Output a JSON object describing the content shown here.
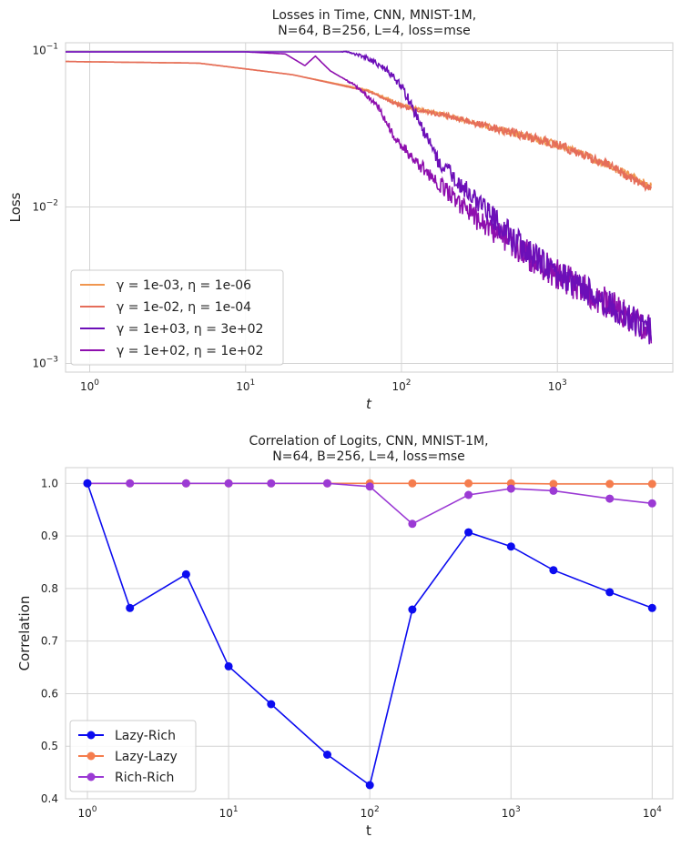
{
  "chart_data": [
    {
      "type": "line",
      "title_line1": "Losses in Time, CNN, MNIST-1M,",
      "title_line2": "N=64, B=256, L=4, loss=mse",
      "xlabel": "t",
      "ylabel": "Loss",
      "xscale": "log",
      "yscale": "log",
      "xlim": [
        0.7,
        5500
      ],
      "ylim": [
        0.00088,
        0.112
      ],
      "xticks": [
        {
          "value": 1,
          "base": "10",
          "exp": "0"
        },
        {
          "value": 10,
          "base": "10",
          "exp": "1"
        },
        {
          "value": 100,
          "base": "10",
          "exp": "2"
        },
        {
          "value": 1000,
          "base": "10",
          "exp": "3"
        }
      ],
      "yticks": [
        {
          "value": 0.001,
          "base": "10",
          "exp": "−3"
        },
        {
          "value": 0.01,
          "base": "10",
          "exp": "−2"
        },
        {
          "value": 0.1,
          "base": "10",
          "exp": "−1"
        }
      ],
      "legend_position": "lower-left",
      "series": [
        {
          "name": "γ = 1e-03, η = 1e-06",
          "color": "#f0964f",
          "points": [
            [
              0.7,
              0.085
            ],
            [
              5,
              0.083
            ],
            [
              20,
              0.07
            ],
            [
              60,
              0.056
            ],
            [
              100,
              0.045
            ],
            [
              200,
              0.038
            ],
            [
              500,
              0.03
            ],
            [
              1000,
              0.025
            ],
            [
              2000,
              0.019
            ],
            [
              4000,
              0.0135
            ]
          ],
          "noise": 0.025
        },
        {
          "name": "γ = 1e-02, η = 1e-04",
          "color": "#e56d5a",
          "points": [
            [
              0.7,
              0.085
            ],
            [
              5,
              0.083
            ],
            [
              20,
              0.07
            ],
            [
              60,
              0.055
            ],
            [
              100,
              0.044
            ],
            [
              200,
              0.038
            ],
            [
              500,
              0.03
            ],
            [
              1000,
              0.025
            ],
            [
              2000,
              0.019
            ],
            [
              4000,
              0.013
            ]
          ],
          "noise": 0.03
        },
        {
          "name": "γ = 1e+03, η = 3e+02",
          "color": "#6c0fb8",
          "points": [
            [
              0.7,
              0.098
            ],
            [
              20,
              0.098
            ],
            [
              45,
              0.098
            ],
            [
              60,
              0.09
            ],
            [
              80,
              0.075
            ],
            [
              100,
              0.06
            ],
            [
              130,
              0.035
            ],
            [
              170,
              0.02
            ],
            [
              300,
              0.011
            ],
            [
              600,
              0.0055
            ],
            [
              1000,
              0.0038
            ],
            [
              2000,
              0.0025
            ],
            [
              4000,
              0.0016
            ]
          ],
          "noise": 0.09
        },
        {
          "name": "γ = 1e+02, η = 1e+02",
          "color": "#8e0fae",
          "points": [
            [
              0.7,
              0.098
            ],
            [
              10,
              0.098
            ],
            [
              18,
              0.095
            ],
            [
              24,
              0.08
            ],
            [
              28,
              0.092
            ],
            [
              35,
              0.074
            ],
            [
              50,
              0.06
            ],
            [
              70,
              0.045
            ],
            [
              90,
              0.028
            ],
            [
              150,
              0.016
            ],
            [
              300,
              0.0085
            ],
            [
              600,
              0.0052
            ],
            [
              1000,
              0.0037
            ],
            [
              2000,
              0.0025
            ],
            [
              4000,
              0.0016
            ]
          ],
          "noise": 0.1
        }
      ]
    },
    {
      "type": "line",
      "title_line1": "Correlation of Logits, CNN, MNIST-1M,",
      "title_line2": "N=64, B=256, L=4, loss=mse",
      "xlabel": "t",
      "ylabel": "Correlation",
      "xscale": "log",
      "xlim": [
        0.7,
        14000
      ],
      "ylim": [
        0.4,
        1.03
      ],
      "xticks": [
        {
          "value": 1,
          "base": "10",
          "exp": "0"
        },
        {
          "value": 10,
          "base": "10",
          "exp": "1"
        },
        {
          "value": 100,
          "base": "10",
          "exp": "2"
        },
        {
          "value": 1000,
          "base": "10",
          "exp": "3"
        },
        {
          "value": 10000,
          "base": "10",
          "exp": "4"
        }
      ],
      "yticks": [
        "0.4",
        "0.5",
        "0.6",
        "0.7",
        "0.8",
        "0.9",
        "1.0"
      ],
      "legend_position": "lower-left",
      "x": [
        1,
        2,
        5,
        10,
        20,
        50,
        100,
        200,
        500,
        1000,
        2000,
        5000,
        10000
      ],
      "series": [
        {
          "name": "Lazy-Rich",
          "color": "#0c0cf0",
          "values": [
            1.0,
            0.763,
            0.827,
            0.652,
            0.58,
            0.484,
            0.426,
            0.76,
            0.907,
            0.88,
            0.835,
            0.793,
            0.763
          ]
        },
        {
          "name": "Lazy-Lazy",
          "color": "#f57d4e",
          "values": [
            1.0,
            1.0,
            1.0,
            1.0,
            1.0,
            1.0,
            1.0,
            1.0,
            1.0,
            1.0,
            0.999,
            0.999,
            0.999
          ]
        },
        {
          "name": "Rich-Rich",
          "color": "#9b3ad4",
          "values": [
            1.0,
            1.0,
            1.0,
            1.0,
            1.0,
            1.0,
            0.994,
            0.923,
            0.978,
            0.99,
            0.986,
            0.971,
            0.962
          ]
        }
      ]
    }
  ]
}
